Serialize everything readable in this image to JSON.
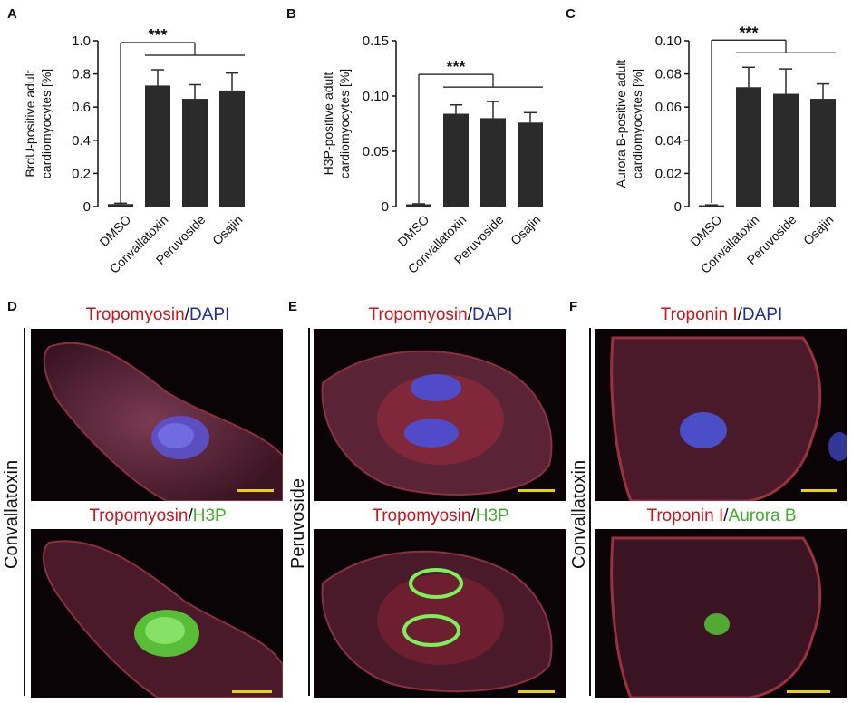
{
  "colors": {
    "bar": "#2b2b2b",
    "red_label": "#c9151e",
    "blue_label": "#1e2f9c",
    "green_label": "#3fae2a",
    "scalebar": "#e8d400"
  },
  "chart_data": [
    {
      "type": "bar",
      "panel": "A",
      "ylabel": "BrdU-positive adult cardiomyocytes [%]",
      "ylabel_lines": [
        "BrdU-positive adult",
        "cardiomyocytes [%]"
      ],
      "categories": [
        "DMSO",
        "Convallatoxin",
        "Peruvoside",
        "Osajin"
      ],
      "values": [
        0.015,
        0.73,
        0.65,
        0.7
      ],
      "errors": [
        0.005,
        0.095,
        0.085,
        0.105
      ],
      "ylim": [
        0,
        1.0
      ],
      "yticks": [
        0,
        0.2,
        0.4,
        0.6,
        0.8,
        1.0
      ],
      "ytick_labels": [
        "0",
        "0.2",
        "0.4",
        "0.6",
        "0.8",
        "1.0"
      ],
      "significance": "***",
      "grid": false
    },
    {
      "type": "bar",
      "panel": "B",
      "ylabel": "H3P-positive adult cardiomyocytes [%]",
      "ylabel_lines": [
        "H3P-positive adult",
        "cardiomyocytes [%]"
      ],
      "categories": [
        "DMSO",
        "Convallatoxin",
        "Peruvoside",
        "Osajin"
      ],
      "values": [
        0.002,
        0.084,
        0.08,
        0.076
      ],
      "errors": [
        0.0005,
        0.008,
        0.015,
        0.009
      ],
      "ylim": [
        0,
        0.15
      ],
      "yticks": [
        0,
        0.05,
        0.1,
        0.15
      ],
      "ytick_labels": [
        "0",
        "0.05",
        "0.10",
        "0.15"
      ],
      "significance": "***",
      "grid": false
    },
    {
      "type": "bar",
      "panel": "C",
      "ylabel": "Aurora B-positive adult cardiomyocytes [%]",
      "ylabel_lines": [
        "Aurora B-positive adult",
        "cardiomyocytes [%]"
      ],
      "categories": [
        "DMSO",
        "Convallatoxin",
        "Peruvoside",
        "Osajin"
      ],
      "values": [
        0.0008,
        0.072,
        0.068,
        0.065
      ],
      "errors": [
        0.0002,
        0.012,
        0.015,
        0.009
      ],
      "ylim": [
        0,
        0.1
      ],
      "yticks": [
        0,
        0.02,
        0.04,
        0.06,
        0.08,
        0.1
      ],
      "ytick_labels": [
        "0",
        "0.02",
        "0.04",
        "0.06",
        "0.08",
        "0.10"
      ],
      "significance": "***",
      "grid": false
    }
  ],
  "images": {
    "D": {
      "letter": "D",
      "row_label": "Convallatoxin",
      "top": {
        "t1": "Tropomyosin",
        "sep": "/",
        "t2": "DAPI"
      },
      "bottom": {
        "t1": "Tropomyosin",
        "sep": "/",
        "t2": "H3P"
      }
    },
    "E": {
      "letter": "E",
      "row_label": "Peruvoside",
      "top": {
        "t1": "Tropomyosin",
        "sep": "/",
        "t2": "DAPI"
      },
      "bottom": {
        "t1": "Tropomyosin",
        "sep": "/",
        "t2": "H3P"
      }
    },
    "F": {
      "letter": "F",
      "row_label": "Convallatoxin",
      "top": {
        "t1": "Troponin I",
        "sep": "/",
        "t2": "DAPI"
      },
      "bottom": {
        "t1": "Troponin I",
        "sep": "/",
        "t2": "Aurora B"
      }
    }
  }
}
